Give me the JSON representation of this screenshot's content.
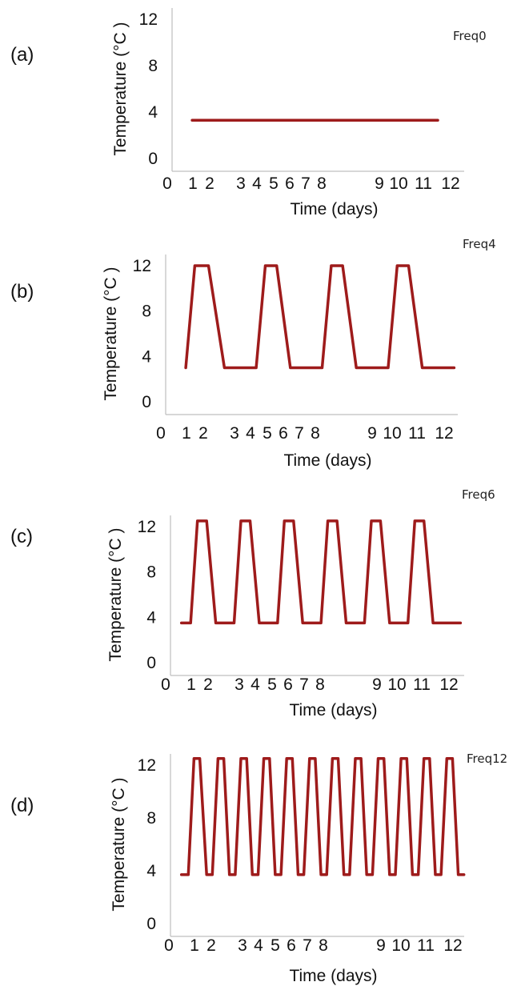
{
  "chart_data": [
    {
      "type": "line",
      "panel_label": "(a)",
      "freq_label": "Freq0",
      "xlabel": "Time (days)",
      "ylabel": "Temperature (°C )",
      "x_ticks": [
        "0",
        "1",
        "2",
        "3",
        "4",
        "5",
        "6",
        "7",
        "8",
        "9",
        "10",
        "11",
        "12"
      ],
      "y_ticks": [
        "0",
        "4",
        "8",
        "12"
      ],
      "xlim": [
        0,
        12
      ],
      "ylim": [
        0,
        12
      ],
      "series": [
        {
          "x": [
            0.6,
            11.4
          ],
          "y": [
            3.3,
            3.3
          ]
        }
      ]
    },
    {
      "type": "line",
      "panel_label": "(b)",
      "freq_label": "Freq4",
      "xlabel": "Time (days)",
      "ylabel": "Temperature (°C )",
      "x_ticks": [
        "0",
        "1",
        "2",
        "3",
        "4",
        "5",
        "6",
        "7",
        "8",
        "9",
        "10",
        "11",
        "12"
      ],
      "y_ticks": [
        "0",
        "4",
        "8",
        "12"
      ],
      "xlim": [
        0,
        12
      ],
      "ylim": [
        0,
        12
      ],
      "series": [
        {
          "x": [
            0.6,
            1.0,
            1.6,
            2.3,
            3.7,
            4.1,
            4.6,
            5.2,
            6.6,
            7.0,
            7.5,
            8.1,
            9.5,
            9.9,
            10.4,
            11.0,
            12.4
          ],
          "y": [
            3.0,
            12.0,
            12.0,
            3.0,
            3.0,
            12.0,
            12.0,
            3.0,
            3.0,
            12.0,
            12.0,
            3.0,
            3.0,
            12.0,
            12.0,
            3.0,
            3.0
          ]
        }
      ]
    },
    {
      "type": "line",
      "panel_label": "(c)",
      "freq_label": "Freq6",
      "xlabel": "Time (days)",
      "ylabel": "Temperature (°C )",
      "x_ticks": [
        "0",
        "1",
        "2",
        "3",
        "4",
        "5",
        "6",
        "7",
        "8",
        "9",
        "10",
        "11",
        "12"
      ],
      "y_ticks": [
        "0",
        "4",
        "8",
        "12"
      ],
      "xlim": [
        0,
        12
      ],
      "ylim": [
        0,
        12
      ],
      "series": [
        {
          "x": [
            0.2,
            0.6,
            0.9,
            1.3,
            1.7,
            2.5,
            2.8,
            3.2,
            3.6,
            4.4,
            4.7,
            5.1,
            5.5,
            6.3,
            6.6,
            7.0,
            7.4,
            8.2,
            8.5,
            8.9,
            9.3,
            10.1,
            10.4,
            10.8,
            11.2,
            12.4
          ],
          "y": [
            3.5,
            3.5,
            12.5,
            12.5,
            3.5,
            3.5,
            12.5,
            12.5,
            3.5,
            3.5,
            12.5,
            12.5,
            3.5,
            3.5,
            12.5,
            12.5,
            3.5,
            3.5,
            12.5,
            12.5,
            3.5,
            3.5,
            12.5,
            12.5,
            3.5,
            3.5
          ]
        }
      ]
    },
    {
      "type": "line",
      "panel_label": "(d)",
      "freq_label": "Freq12",
      "xlabel": "Time (days)",
      "ylabel": "Temperature (°C )",
      "x_ticks": [
        "0",
        "1",
        "2",
        "3",
        "4",
        "5",
        "6",
        "7",
        "8",
        "9",
        "10",
        "11",
        "12"
      ],
      "y_ticks": [
        "0",
        "4",
        "8",
        "12"
      ],
      "xlim": [
        0,
        12
      ],
      "ylim": [
        0,
        12
      ],
      "series": [
        {
          "x": [
            0.2,
            0.5,
            0.75,
            1.0,
            1.3,
            1.55,
            1.8,
            2.05,
            2.3,
            2.55,
            2.8,
            3.05,
            3.3,
            3.55,
            3.8,
            4.05,
            4.3,
            4.55,
            4.8,
            5.05,
            5.3,
            5.55,
            5.8,
            6.05,
            6.3,
            6.55,
            6.8,
            7.05,
            7.3,
            7.55,
            7.8,
            8.05,
            8.3,
            8.55,
            8.8,
            9.05,
            9.3,
            9.55,
            9.8,
            10.05,
            10.3,
            10.55,
            10.8,
            11.05,
            11.3,
            11.55,
            11.8,
            12.05,
            12.3,
            12.55
          ],
          "y": [
            3.7,
            3.7,
            12.5,
            12.5,
            3.7,
            3.7,
            12.5,
            12.5,
            3.7,
            3.7,
            12.5,
            12.5,
            3.7,
            3.7,
            12.5,
            12.5,
            3.7,
            3.7,
            12.5,
            12.5,
            3.7,
            3.7,
            12.5,
            12.5,
            3.7,
            3.7,
            12.5,
            12.5,
            3.7,
            3.7,
            12.5,
            12.5,
            3.7,
            3.7,
            12.5,
            12.5,
            3.7,
            3.7,
            12.5,
            12.5,
            3.7,
            3.7,
            12.5,
            12.5,
            3.7,
            3.7,
            12.5,
            12.5,
            3.7,
            3.7
          ]
        }
      ]
    }
  ]
}
